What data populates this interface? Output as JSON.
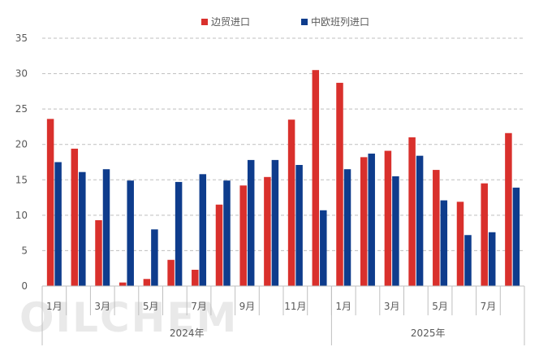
{
  "chart_data": {
    "type": "bar",
    "title": "",
    "xlabel": "",
    "ylabel": "",
    "ylim": [
      0,
      35
    ],
    "yticks": [
      "0",
      "5",
      "10",
      "15",
      "20",
      "25",
      "30",
      "35"
    ],
    "grid": true,
    "legend_position": "top",
    "categories": [
      "2024-01",
      "2024-02",
      "2024-03",
      "2024-04",
      "2024-05",
      "2024-06",
      "2024-07",
      "2024-08",
      "2024-09",
      "2024-10",
      "2024-11",
      "2024-12",
      "2025-01",
      "2025-02",
      "2025-03",
      "2025-04",
      "2025-05",
      "2025-06",
      "2025-07",
      "2025-08"
    ],
    "month_labels": [
      "1月",
      "",
      "3月",
      "",
      "5月",
      "",
      "7月",
      "",
      "9月",
      "",
      "11月",
      "",
      "1月",
      "",
      "3月",
      "",
      "5月",
      "",
      "7月",
      ""
    ],
    "year_groups": [
      {
        "label": "2024年",
        "count": 12
      },
      {
        "label": "2025年",
        "count": 8
      }
    ],
    "series": [
      {
        "name": "边贸进口",
        "color": "#d9302c",
        "values": [
          23.6,
          19.4,
          9.3,
          0.5,
          1.0,
          3.7,
          2.3,
          11.5,
          14.2,
          15.4,
          23.5,
          30.5,
          28.7,
          18.2,
          19.1,
          21.0,
          16.4,
          11.9,
          14.5,
          21.6
        ]
      },
      {
        "name": "中欧班列进口",
        "color": "#0e3c8c",
        "values": [
          17.5,
          16.1,
          16.5,
          14.9,
          8.0,
          14.7,
          15.8,
          14.9,
          17.8,
          17.8,
          17.1,
          10.7,
          16.5,
          18.7,
          15.5,
          18.4,
          12.1,
          7.2,
          7.6,
          13.9
        ]
      }
    ]
  },
  "watermark": "OILCHEM"
}
